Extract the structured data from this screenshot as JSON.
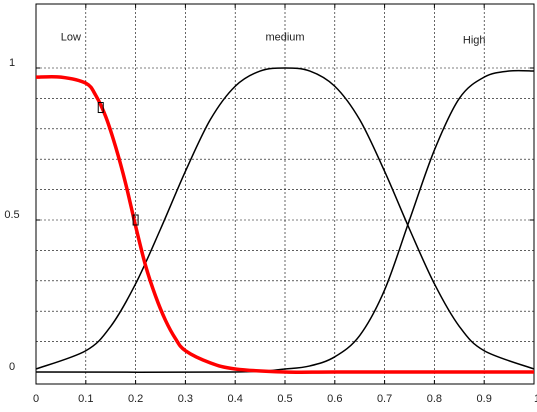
{
  "chart_data": {
    "type": "line",
    "title": "",
    "xlabel": "",
    "ylabel": "",
    "xlim": [
      0,
      1
    ],
    "ylim": [
      0,
      1
    ],
    "xticks": [
      "0",
      "0.1",
      "0.2",
      "0.3",
      "0.4",
      "0.5",
      "0.6",
      "0.7",
      "0.8",
      "0.9",
      "1"
    ],
    "yticks": [
      "0",
      "0.5",
      "1"
    ],
    "grid": true,
    "series": [
      {
        "name": "Low",
        "color": "#ff0000",
        "highlighted": true,
        "x": [
          0,
          0.05,
          0.1,
          0.12,
          0.14,
          0.16,
          0.18,
          0.2,
          0.22,
          0.24,
          0.26,
          0.28,
          0.3,
          0.35,
          0.4,
          0.5,
          0.6,
          0.8,
          1.0
        ],
        "y": [
          0.97,
          0.97,
          0.95,
          0.91,
          0.84,
          0.74,
          0.62,
          0.48,
          0.35,
          0.25,
          0.17,
          0.11,
          0.07,
          0.03,
          0.01,
          0,
          0,
          0,
          0
        ]
      },
      {
        "name": "medium",
        "color": "#000000",
        "highlighted": false,
        "x": [
          0,
          0.1,
          0.15,
          0.2,
          0.25,
          0.3,
          0.35,
          0.4,
          0.45,
          0.5,
          0.55,
          0.6,
          0.65,
          0.7,
          0.75,
          0.8,
          0.85,
          0.9,
          1.0
        ],
        "y": [
          0.01,
          0.07,
          0.15,
          0.29,
          0.47,
          0.66,
          0.83,
          0.94,
          0.99,
          1,
          0.99,
          0.94,
          0.83,
          0.66,
          0.47,
          0.29,
          0.15,
          0.07,
          0.01
        ]
      },
      {
        "name": "High",
        "color": "#000000",
        "highlighted": false,
        "x": [
          0,
          0.4,
          0.5,
          0.55,
          0.6,
          0.65,
          0.7,
          0.75,
          0.8,
          0.85,
          0.9,
          0.95,
          1.0
        ],
        "y": [
          0,
          0,
          0.01,
          0.02,
          0.05,
          0.12,
          0.27,
          0.5,
          0.73,
          0.9,
          0.97,
          0.99,
          0.99
        ]
      }
    ],
    "labels": [
      {
        "text": "Low",
        "x": 0.07,
        "y": 1.09
      },
      {
        "text": "medium",
        "x": 0.5,
        "y": 1.09
      },
      {
        "text": "High",
        "x": 0.88,
        "y": 1.08
      }
    ],
    "markers": [
      {
        "series": "Low",
        "x": 0.13,
        "y": 0.87
      },
      {
        "series": "Low",
        "x": 0.2,
        "y": 0.5
      }
    ]
  }
}
